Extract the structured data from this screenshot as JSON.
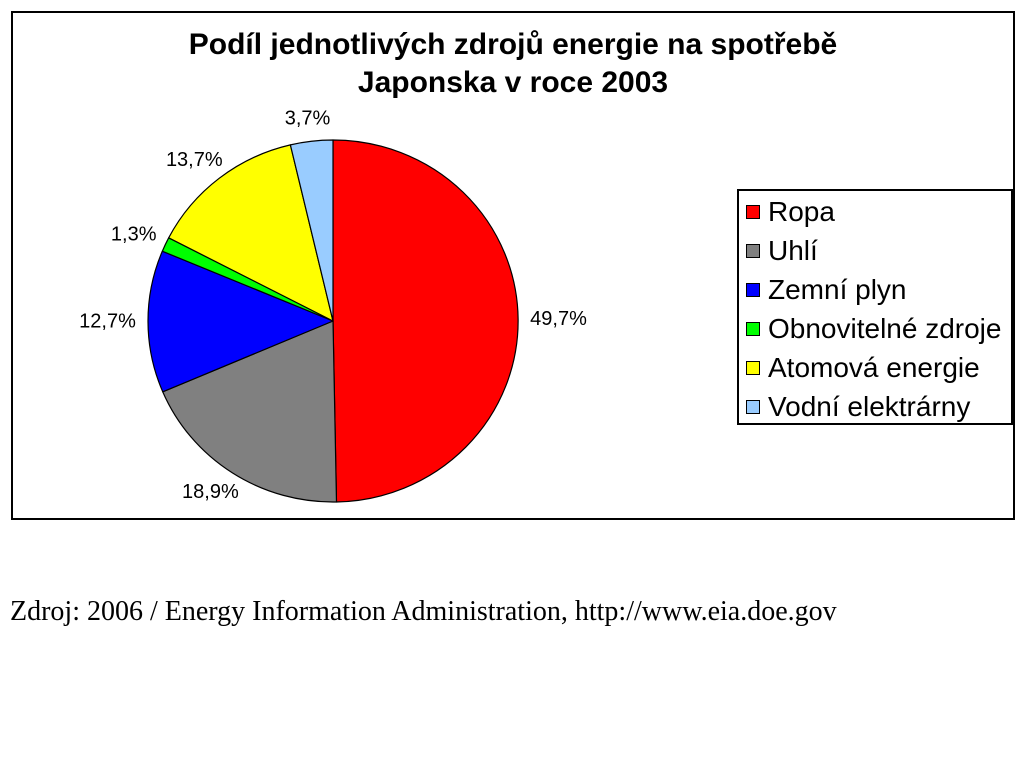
{
  "chart_data": {
    "type": "pie",
    "title": [
      "Podíl jednotlivých zdrojů energie na spotřebě",
      "Japonska v roce 2003"
    ],
    "categories": [
      "Ropa",
      "Uhlí",
      "Zemní plyn",
      "Obnovitelné zdroje",
      "Atomová energie",
      "Vodní elektrárny"
    ],
    "values": [
      49.7,
      18.9,
      12.7,
      1.3,
      13.7,
      3.7
    ],
    "data_labels": [
      "49,7%",
      "18,9%",
      "12,7%",
      "1,3%",
      "13,7%",
      "3,7%"
    ],
    "colors": [
      "#FF0000",
      "#808080",
      "#0000FF",
      "#00FF00",
      "#FFFF00",
      "#99CCFF"
    ],
    "legend_position": "right"
  },
  "source": "Zdroj: 2006 / Energy Information Administration, http://www.eia.doe.gov"
}
